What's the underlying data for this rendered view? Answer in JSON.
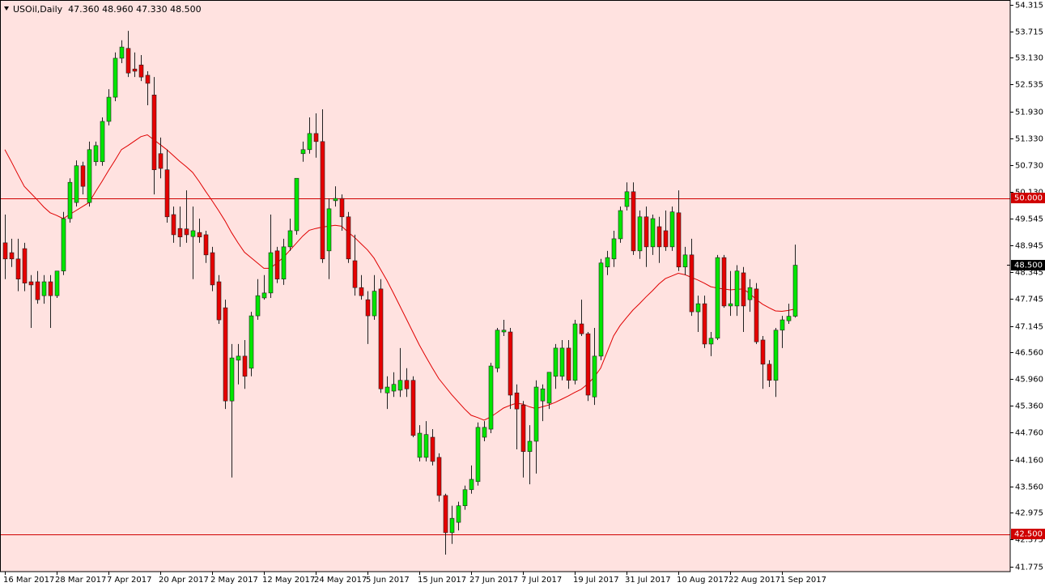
{
  "chart_data": {
    "type": "candlestick",
    "title": "USOil,Daily",
    "subtitle": "47.360 48.960 47.330 48.500",
    "categories": [
      "16 Mar 2017",
      null,
      null,
      null,
      null,
      null,
      null,
      null,
      "28 Mar 2017",
      null,
      null,
      null,
      null,
      null,
      null,
      null,
      "7 Apr 2017",
      null,
      null,
      null,
      null,
      null,
      null,
      null,
      "20 Apr 2017",
      null,
      null,
      null,
      null,
      null,
      null,
      null,
      "2 May 2017",
      null,
      null,
      null,
      null,
      null,
      null,
      null,
      "12 May 2017",
      null,
      null,
      null,
      null,
      null,
      null,
      null,
      "24 May 2017",
      null,
      null,
      null,
      null,
      null,
      null,
      null,
      "5 Jun 2017",
      null,
      null,
      null,
      null,
      null,
      null,
      null,
      "15 Jun 2017",
      null,
      null,
      null,
      null,
      null,
      null,
      null,
      "27 Jun 2017",
      null,
      null,
      null,
      null,
      null,
      null,
      null,
      "7 Jul 2017",
      null,
      null,
      null,
      null,
      null,
      null,
      null,
      "19 Jul 2017",
      null,
      null,
      null,
      null,
      null,
      null,
      null,
      "31 Jul 2017",
      null,
      null,
      null,
      null,
      null,
      null,
      null,
      "10 Aug 2017",
      null,
      null,
      null,
      null,
      null,
      null,
      null,
      "22 Aug 2017",
      null,
      null,
      null,
      null,
      null,
      null,
      null,
      "1 Sep 2017",
      null,
      null
    ],
    "open": [
      49.0,
      48.78,
      48.64,
      48.87,
      48.13,
      48.13,
      47.82,
      48.13,
      47.82,
      48.37,
      49.54,
      49.9,
      50.72,
      49.9,
      50.81,
      50.81,
      51.71,
      52.25,
      53.12,
      53.34,
      52.88,
      52.97,
      52.74,
      52.3,
      50.99,
      50.63,
      49.63,
      49.32,
      49.31,
      49.14,
      49.23,
      49.18,
      48.78,
      48.13,
      47.55,
      45.47,
      46.38,
      46.47,
      46.2,
      47.37,
      47.77,
      47.88,
      48.82,
      48.19,
      48.91,
      49.27,
      50.99,
      51.08,
      51.44,
      51.26,
      48.82,
      49.94,
      49.99,
      49.58,
      48.6,
      48.0,
      47.73,
      47.37,
      47.97,
      45.65,
      45.69,
      45.71,
      45.93,
      45.93,
      44.21,
      44.21,
      44.66,
      44.21,
      43.36,
      42.53,
      42.76,
      43.13,
      43.49,
      43.67,
      44.66,
      44.84,
      46.2,
      47.01,
      47.01,
      45.65,
      45.38,
      44.34,
      44.57,
      45.47,
      45.42,
      46.02,
      46.02,
      46.65,
      45.93,
      47.19,
      46.97,
      45.56,
      46.47,
      48.46,
      48.64,
      49.09,
      49.81,
      50.14,
      48.82,
      49.58,
      48.91,
      49.36,
      49.27,
      48.91,
      49.67,
      48.46,
      48.73,
      47.46,
      47.64,
      46.74,
      46.87,
      48.67,
      47.59,
      47.59,
      48.33,
      47.73,
      47.97,
      46.83,
      46.29,
      45.93,
      47.05,
      47.26,
      47.36
    ],
    "high": [
      49.63,
      49.09,
      49.09,
      49.0,
      48.28,
      48.37,
      48.28,
      48.28,
      48.37,
      49.69,
      50.44,
      50.84,
      50.81,
      51.26,
      51.26,
      51.8,
      52.43,
      53.25,
      53.52,
      53.73,
      53.25,
      53.19,
      52.83,
      52.7,
      51.35,
      51.08,
      49.81,
      49.81,
      50.17,
      49.81,
      49.54,
      49.27,
      48.91,
      48.28,
      47.73,
      46.74,
      46.74,
      46.83,
      47.46,
      48.19,
      48.28,
      49.63,
      48.91,
      49.09,
      49.54,
      50.44,
      51.26,
      51.8,
      51.89,
      51.98,
      49.99,
      50.26,
      50.08,
      49.69,
      49.18,
      48.28,
      47.92,
      48.28,
      48.19,
      46.02,
      46.11,
      46.65,
      46.2,
      46.02,
      44.93,
      45.02,
      44.84,
      44.3,
      43.4,
      43.13,
      43.22,
      43.58,
      44.03,
      44.99,
      45.02,
      46.32,
      47.1,
      47.28,
      47.1,
      45.84,
      45.47,
      44.93,
      45.93,
      45.84,
      46.11,
      46.74,
      46.83,
      46.83,
      47.28,
      47.73,
      47.01,
      47.1,
      48.64,
      48.82,
      49.27,
      49.81,
      50.35,
      50.35,
      49.72,
      49.81,
      49.63,
      49.58,
      49.72,
      49.81,
      50.17,
      48.91,
      49.09,
      47.82,
      47.82,
      47.01,
      48.73,
      48.73,
      48.37,
      48.5,
      48.46,
      48.19,
      48.1,
      46.92,
      46.38,
      47.1,
      47.37,
      47.64,
      48.96
    ],
    "low": [
      48.19,
      48.46,
      47.92,
      47.92,
      47.1,
      47.64,
      47.64,
      47.1,
      47.77,
      48.28,
      49.45,
      49.81,
      50.08,
      49.81,
      50.72,
      50.72,
      51.62,
      52.16,
      53.01,
      52.7,
      52.7,
      52.61,
      52.07,
      50.08,
      50.44,
      49.45,
      49.0,
      48.91,
      49.0,
      48.19,
      49.0,
      48.55,
      47.92,
      47.19,
      45.29,
      43.76,
      45.84,
      45.74,
      46.02,
      47.28,
      47.73,
      47.77,
      48.1,
      48.06,
      48.82,
      49.18,
      50.81,
      50.99,
      50.9,
      48.55,
      48.19,
      49.81,
      49.27,
      48.55,
      47.82,
      47.73,
      46.74,
      47.28,
      45.65,
      45.29,
      45.56,
      45.56,
      45.56,
      44.66,
      44.12,
      44.12,
      44.03,
      43.22,
      42.04,
      42.28,
      42.58,
      43.04,
      43.4,
      43.58,
      44.57,
      44.75,
      46.11,
      46.92,
      45.29,
      44.39,
      43.76,
      43.61,
      43.85,
      45.02,
      45.29,
      45.74,
      45.93,
      45.74,
      45.84,
      46.92,
      45.47,
      45.38,
      46.38,
      48.28,
      48.46,
      49.0,
      49.72,
      48.73,
      48.64,
      48.46,
      48.73,
      48.55,
      48.82,
      48.82,
      48.37,
      48.28,
      47.37,
      47.01,
      46.65,
      46.47,
      46.83,
      47.55,
      47.37,
      47.37,
      47.01,
      47.46,
      46.74,
      45.74,
      45.78,
      45.56,
      46.65,
      47.19,
      47.33
    ],
    "close": [
      48.64,
      48.64,
      48.19,
      48.1,
      48.06,
      47.73,
      48.13,
      47.82,
      48.37,
      49.54,
      50.35,
      50.72,
      50.26,
      51.08,
      51.17,
      51.71,
      52.25,
      53.12,
      53.37,
      52.79,
      52.83,
      52.7,
      52.56,
      50.63,
      50.66,
      49.58,
      49.18,
      49.13,
      49.18,
      49.27,
      49.13,
      48.73,
      48.06,
      47.28,
      45.47,
      46.43,
      46.47,
      46.02,
      47.37,
      47.82,
      47.88,
      48.78,
      48.19,
      48.91,
      49.27,
      50.44,
      51.08,
      51.44,
      51.26,
      48.64,
      49.76,
      49.99,
      49.58,
      48.64,
      48.0,
      47.82,
      47.37,
      47.92,
      45.74,
      45.78,
      45.84,
      45.93,
      45.74,
      44.7,
      44.75,
      44.72,
      44.12,
      43.36,
      42.53,
      42.85,
      43.13,
      43.49,
      43.72,
      44.88,
      44.88,
      46.25,
      47.05,
      47.05,
      45.6,
      45.29,
      44.34,
      44.57,
      45.78,
      45.74,
      46.11,
      46.65,
      46.65,
      45.93,
      47.19,
      46.97,
      45.6,
      46.47,
      48.55,
      48.67,
      49.09,
      49.72,
      50.14,
      48.82,
      49.58,
      48.91,
      49.54,
      48.91,
      48.91,
      49.69,
      48.46,
      48.73,
      47.46,
      47.64,
      46.74,
      46.87,
      48.67,
      47.59,
      47.64,
      48.37,
      47.59,
      48.0,
      46.79,
      46.29,
      45.93,
      47.05,
      47.28,
      47.36,
      48.5
    ],
    "moving_average": [
      51.08,
      50.81,
      50.53,
      50.26,
      50.11,
      49.96,
      49.8,
      49.67,
      49.61,
      49.54,
      49.63,
      49.72,
      49.81,
      49.9,
      50.14,
      50.37,
      50.61,
      50.84,
      51.08,
      51.17,
      51.27,
      51.37,
      51.41,
      51.3,
      51.19,
      51.08,
      50.95,
      50.82,
      50.7,
      50.57,
      50.37,
      50.15,
      49.94,
      49.72,
      49.49,
      49.23,
      49.0,
      48.79,
      48.67,
      48.55,
      48.43,
      48.43,
      48.55,
      48.67,
      48.83,
      48.99,
      49.15,
      49.28,
      49.32,
      49.35,
      49.37,
      49.39,
      49.37,
      49.24,
      49.12,
      48.98,
      48.84,
      48.66,
      48.41,
      48.16,
      47.88,
      47.59,
      47.3,
      47.01,
      46.72,
      46.46,
      46.21,
      45.97,
      45.79,
      45.61,
      45.45,
      45.29,
      45.15,
      45.1,
      45.04,
      45.11,
      45.21,
      45.31,
      45.37,
      45.42,
      45.4,
      45.34,
      45.3,
      45.34,
      45.38,
      45.44,
      45.51,
      45.58,
      45.66,
      45.73,
      45.85,
      46.0,
      46.2,
      46.56,
      46.92,
      47.15,
      47.33,
      47.5,
      47.64,
      47.79,
      47.93,
      48.08,
      48.2,
      48.26,
      48.32,
      48.29,
      48.23,
      48.17,
      48.1,
      48.02,
      47.99,
      47.97,
      47.95,
      47.96,
      47.97,
      47.87,
      47.74,
      47.63,
      47.55,
      47.48,
      47.47,
      47.49,
      47.52
    ],
    "moving_average_color": "#e00000",
    "up_color": "#00e600",
    "down_color": "#e60000",
    "wick_color": "#202020",
    "background": "#ffe2e0",
    "ylim": [
      41.66,
      54.42
    ],
    "yticks": [
      54.315,
      53.715,
      {
        "value": 53.13,
        "label": "53.130"
      },
      52.535,
      {
        "value": 51.93,
        "label": "51.930"
      },
      {
        "value": 51.33,
        "label": "51.330"
      },
      {
        "value": 50.73,
        "label": "50.730"
      },
      {
        "value": 50.13,
        "label": "50.130"
      },
      49.545,
      48.945,
      48.345,
      47.745,
      47.145,
      {
        "value": 46.56,
        "label": "46.560"
      },
      {
        "value": 45.96,
        "label": "45.960"
      },
      {
        "value": 45.36,
        "label": "45.360"
      },
      {
        "value": 44.76,
        "label": "44.760"
      },
      {
        "value": 44.16,
        "label": "44.160"
      },
      {
        "value": 43.56,
        "label": "43.560"
      },
      42.975,
      42.375,
      41.775
    ],
    "hlines": [
      {
        "value": 50,
        "label": "50.000"
      },
      {
        "value": 42.5,
        "label": "42.500"
      }
    ],
    "hline_color": "#d00000",
    "last_price": {
      "value": 48.5,
      "label": "48.500"
    }
  }
}
